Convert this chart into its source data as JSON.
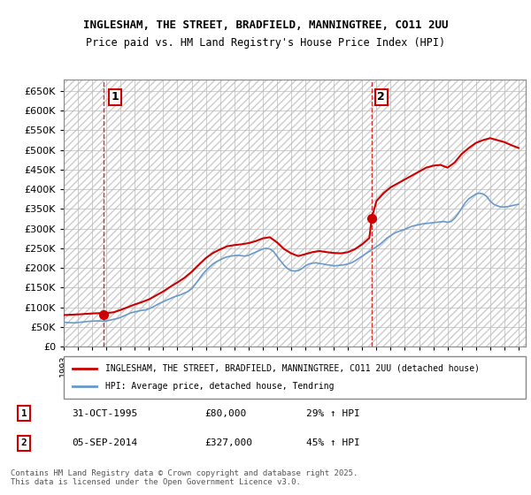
{
  "title1": "INGLESHAM, THE STREET, BRADFIELD, MANNINGTREE, CO11 2UU",
  "title2": "Price paid vs. HM Land Registry's House Price Index (HPI)",
  "ylabel_prefix": "£",
  "ylim": [
    0,
    680000
  ],
  "yticks": [
    0,
    50000,
    100000,
    150000,
    200000,
    250000,
    300000,
    350000,
    400000,
    450000,
    500000,
    550000,
    600000,
    650000
  ],
  "ytick_labels": [
    "£0",
    "£50K",
    "£100K",
    "£150K",
    "£200K",
    "£250K",
    "£300K",
    "£350K",
    "£400K",
    "£450K",
    "£500K",
    "£550K",
    "£600K",
    "£650K"
  ],
  "xlim_start": 1993.0,
  "xlim_end": 2025.5,
  "purchase1_x": 1995.83,
  "purchase1_y": 80000,
  "purchase1_label": "1",
  "purchase2_x": 2014.67,
  "purchase2_y": 327000,
  "purchase2_label": "2",
  "vline1_x": 1995.83,
  "vline2_x": 2014.67,
  "line_color_red": "#cc0000",
  "line_color_blue": "#6699cc",
  "marker_color_red": "#cc0000",
  "bg_hatch_color": "#dddddd",
  "grid_color": "#bbbbbb",
  "legend_line1": "INGLESHAM, THE STREET, BRADFIELD, MANNINGTREE, CO11 2UU (detached house)",
  "legend_line2": "HPI: Average price, detached house, Tendring",
  "purchase_info": [
    {
      "num": "1",
      "date": "31-OCT-1995",
      "price": "£80,000",
      "hpi": "29% ↑ HPI"
    },
    {
      "num": "2",
      "date": "05-SEP-2014",
      "price": "£327,000",
      "hpi": "45% ↑ HPI"
    }
  ],
  "footer": "Contains HM Land Registry data © Crown copyright and database right 2025.\nThis data is licensed under the Open Government Licence v3.0.",
  "hpi_data": {
    "years": [
      1993.0,
      1993.25,
      1993.5,
      1993.75,
      1994.0,
      1994.25,
      1994.5,
      1994.75,
      1995.0,
      1995.25,
      1995.5,
      1995.75,
      1996.0,
      1996.25,
      1996.5,
      1996.75,
      1997.0,
      1997.25,
      1997.5,
      1997.75,
      1998.0,
      1998.25,
      1998.5,
      1998.75,
      1999.0,
      1999.25,
      1999.5,
      1999.75,
      2000.0,
      2000.25,
      2000.5,
      2000.75,
      2001.0,
      2001.25,
      2001.5,
      2001.75,
      2002.0,
      2002.25,
      2002.5,
      2002.75,
      2003.0,
      2003.25,
      2003.5,
      2003.75,
      2004.0,
      2004.25,
      2004.5,
      2004.75,
      2005.0,
      2005.25,
      2005.5,
      2005.75,
      2006.0,
      2006.25,
      2006.5,
      2006.75,
      2007.0,
      2007.25,
      2007.5,
      2007.75,
      2008.0,
      2008.25,
      2008.5,
      2008.75,
      2009.0,
      2009.25,
      2009.5,
      2009.75,
      2010.0,
      2010.25,
      2010.5,
      2010.75,
      2011.0,
      2011.25,
      2011.5,
      2011.75,
      2012.0,
      2012.25,
      2012.5,
      2012.75,
      2013.0,
      2013.25,
      2013.5,
      2013.75,
      2014.0,
      2014.25,
      2014.5,
      2014.75,
      2015.0,
      2015.25,
      2015.5,
      2015.75,
      2016.0,
      2016.25,
      2016.5,
      2016.75,
      2017.0,
      2017.25,
      2017.5,
      2017.75,
      2018.0,
      2018.25,
      2018.5,
      2018.75,
      2019.0,
      2019.25,
      2019.5,
      2019.75,
      2020.0,
      2020.25,
      2020.5,
      2020.75,
      2021.0,
      2021.25,
      2021.5,
      2021.75,
      2022.0,
      2022.25,
      2022.5,
      2022.75,
      2023.0,
      2023.25,
      2023.5,
      2023.75,
      2024.0,
      2024.25,
      2024.5,
      2024.75,
      2025.0
    ],
    "values": [
      62000,
      61000,
      60500,
      60000,
      61000,
      62000,
      63000,
      64000,
      64500,
      65000,
      65000,
      64500,
      65000,
      67000,
      69000,
      71000,
      74000,
      78000,
      82000,
      86000,
      88000,
      90000,
      92000,
      93000,
      96000,
      100000,
      105000,
      110000,
      114000,
      118000,
      122000,
      126000,
      129000,
      132000,
      136000,
      140000,
      147000,
      158000,
      170000,
      183000,
      193000,
      202000,
      210000,
      216000,
      220000,
      225000,
      228000,
      230000,
      231000,
      232000,
      231000,
      230000,
      232000,
      236000,
      240000,
      244000,
      248000,
      250000,
      248000,
      242000,
      230000,
      218000,
      207000,
      198000,
      193000,
      192000,
      193000,
      198000,
      205000,
      210000,
      212000,
      213000,
      211000,
      210000,
      208000,
      207000,
      205000,
      206000,
      207000,
      208000,
      210000,
      213000,
      218000,
      224000,
      230000,
      236000,
      242000,
      248000,
      254000,
      260000,
      268000,
      276000,
      282000,
      288000,
      292000,
      295000,
      298000,
      302000,
      306000,
      308000,
      310000,
      312000,
      313000,
      314000,
      315000,
      316000,
      317000,
      318000,
      316000,
      318000,
      326000,
      338000,
      352000,
      366000,
      376000,
      382000,
      388000,
      390000,
      388000,
      382000,
      370000,
      362000,
      358000,
      355000,
      355000,
      356000,
      358000,
      360000,
      362000
    ]
  },
  "house_data": {
    "years": [
      1993.0,
      1993.3,
      1993.6,
      1993.9,
      1994.2,
      1994.5,
      1994.8,
      1995.0,
      1995.3,
      1995.6,
      1995.83,
      1996.0,
      1996.5,
      1997.0,
      1997.5,
      1998.0,
      1998.5,
      1999.0,
      1999.5,
      2000.0,
      2000.5,
      2001.0,
      2001.5,
      2002.0,
      2002.5,
      2003.0,
      2003.5,
      2004.0,
      2004.5,
      2005.0,
      2005.5,
      2006.0,
      2006.5,
      2007.0,
      2007.5,
      2008.0,
      2008.5,
      2009.0,
      2009.5,
      2010.0,
      2010.5,
      2011.0,
      2011.5,
      2012.0,
      2012.5,
      2013.0,
      2013.5,
      2014.0,
      2014.5,
      2014.67,
      2015.0,
      2015.5,
      2016.0,
      2016.5,
      2017.0,
      2017.5,
      2018.0,
      2018.5,
      2019.0,
      2019.5,
      2020.0,
      2020.5,
      2021.0,
      2021.5,
      2022.0,
      2022.5,
      2023.0,
      2023.5,
      2024.0,
      2024.5,
      2025.0
    ],
    "values": [
      80000,
      80500,
      81000,
      81500,
      82000,
      83000,
      83500,
      84000,
      84500,
      84800,
      80000,
      85000,
      87000,
      93000,
      100000,
      107000,
      113000,
      120000,
      130000,
      140000,
      152000,
      163000,
      175000,
      190000,
      208000,
      225000,
      238000,
      247000,
      255000,
      258000,
      260000,
      263000,
      268000,
      275000,
      278000,
      265000,
      248000,
      237000,
      230000,
      235000,
      240000,
      243000,
      240000,
      238000,
      237000,
      240000,
      248000,
      260000,
      276000,
      327000,
      370000,
      390000,
      405000,
      415000,
      425000,
      435000,
      445000,
      455000,
      460000,
      462000,
      455000,
      468000,
      490000,
      505000,
      518000,
      525000,
      530000,
      525000,
      520000,
      512000,
      505000
    ]
  }
}
